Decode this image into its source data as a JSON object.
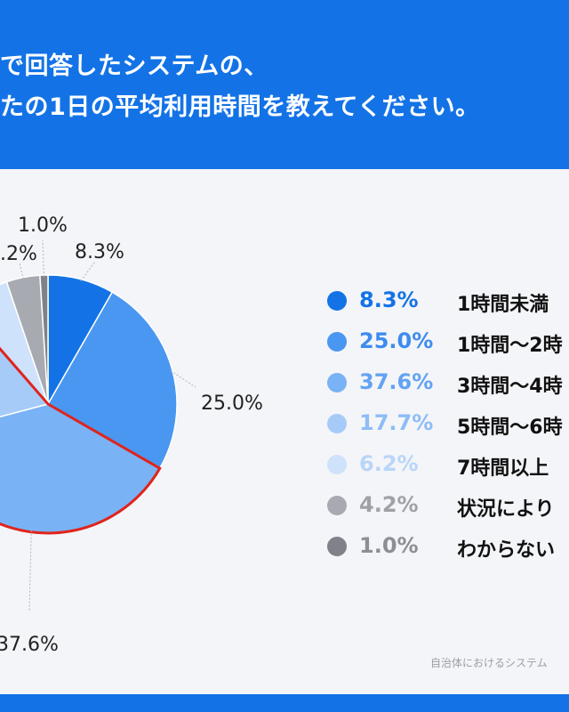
{
  "header": {
    "title_line1": "で回答したシステムの、",
    "title_line2": "たの1日の平均利用時間を教えてください。"
  },
  "source": "自治体におけるシステム",
  "colors": {
    "header_bg": "#1373e6",
    "panel_bg": "#f4f5f8",
    "highlight_border": "#e0241b"
  },
  "chart_data": {
    "type": "pie",
    "title": "",
    "slices": [
      {
        "label": "1時間未満",
        "value": 8.3,
        "display": "8.3%",
        "color": "#1373e6",
        "text_color": "#1373e6"
      },
      {
        "label": "1時間〜2時",
        "value": 25.0,
        "display": "25.0%",
        "color": "#4a97f1",
        "text_color": "#3d8cef"
      },
      {
        "label": "3時間〜4時",
        "value": 37.6,
        "display": "37.6%",
        "color": "#79b2f5",
        "text_color": "#62a3f3"
      },
      {
        "label": "5時間〜6時",
        "value": 17.7,
        "display": "17.7%",
        "color": "#a6cbf8",
        "text_color": "#8dbdf6"
      },
      {
        "label": "7時間以上",
        "value": 6.2,
        "display": "6.2%",
        "color": "#cfe2fb",
        "text_color": "#b9d5f9"
      },
      {
        "label": "状況により",
        "value": 4.2,
        "display": "4.2%",
        "color": "#a7abb1",
        "text_color": "#9ea2a8"
      },
      {
        "label": "わからない",
        "value": 1.0,
        "display": "1.0%",
        "color": "#7f8389",
        "text_color": "#8b8f95"
      }
    ],
    "outside_labels": [
      {
        "text": "8.3%"
      },
      {
        "text": "25.0%"
      },
      {
        "text": "37.6%"
      },
      {
        "text": "1.0%"
      },
      {
        "text": ".2%"
      }
    ],
    "highlighted_slices": [
      "3時間〜4時",
      "5時間〜6時"
    ],
    "legend_placement": "right"
  }
}
